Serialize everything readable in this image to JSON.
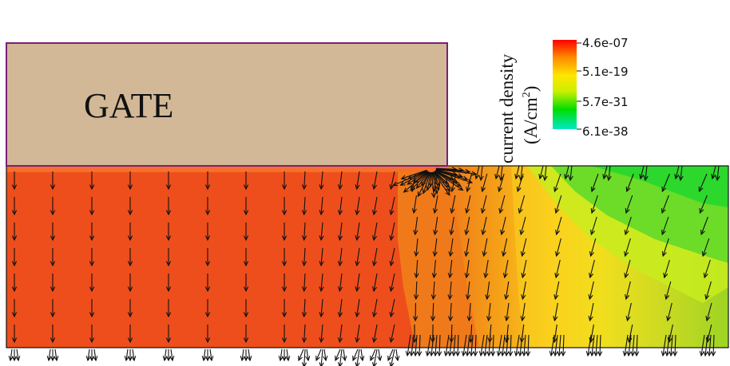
{
  "gate": {
    "label": "GATE",
    "fill_color": "#D2B896",
    "outline_color": "#7A1F7A"
  },
  "legend": {
    "title_line1": "current density",
    "title_line2_prefix": "(A/cm",
    "title_line2_sup": "2",
    "title_line2_suffix": ")",
    "ticks": [
      "4.6e-07",
      "5.1e-19",
      "5.7e-31",
      "6.1e-38"
    ],
    "gradient_colors": [
      "#FF0000",
      "#FF8C00",
      "#FFE600",
      "#C8F000",
      "#00DD00",
      "#00E8C8"
    ]
  },
  "field": {
    "colors": {
      "high": "#EE4E1C",
      "orange": "#F07A1A",
      "orange_light": "#F5A018",
      "yellow": "#FAD21E",
      "yellow_green": "#D8EC1E",
      "green": "#6CDC28",
      "bright_green": "#2CD82C"
    },
    "arrow_color": "#111111"
  }
}
